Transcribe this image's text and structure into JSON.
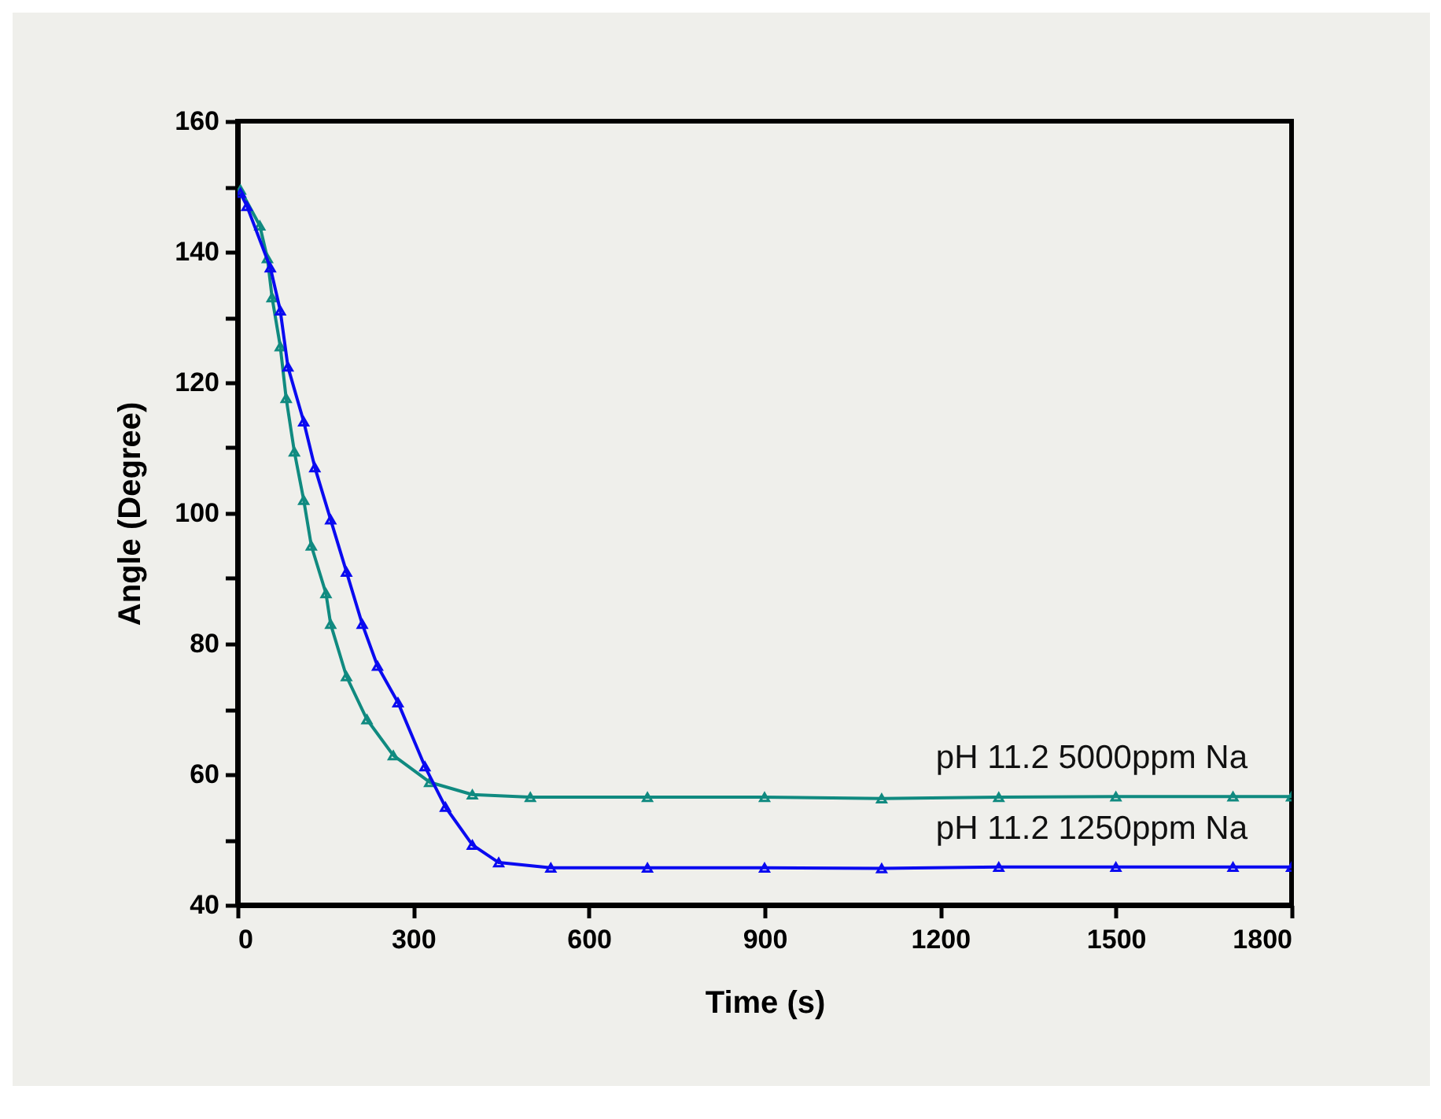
{
  "chart_data": {
    "type": "line",
    "xlabel": "Time (s)",
    "ylabel": "Angle (Degree)",
    "xlim": [
      0,
      1800
    ],
    "ylim": [
      40,
      160
    ],
    "xticks": [
      0,
      300,
      600,
      900,
      1200,
      1500,
      1800
    ],
    "yticks": [
      40,
      {
        "value": 50,
        "label": null
      },
      60,
      {
        "value": 70,
        "label": null
      },
      80,
      {
        "value": 90,
        "label": null
      },
      100,
      {
        "value": 110,
        "label": null
      },
      120,
      {
        "value": 130,
        "label": null
      },
      140,
      {
        "value": 150,
        "label": null
      },
      160
    ],
    "grid": false,
    "marker": "triangle",
    "series": [
      {
        "name": "pH 11.2 5000ppm Na",
        "color": "#108a80",
        "x": [
          5,
          38,
          51,
          59,
          73,
          83,
          97,
          113,
          126,
          151,
          159,
          186,
          221,
          266,
          328,
          401,
          500,
          700,
          900,
          1100,
          1300,
          1500,
          1700,
          1800
        ],
        "values": [
          149.5,
          144,
          139,
          133,
          125.5,
          117.6,
          109.4,
          102,
          95,
          87.7,
          83,
          75,
          68.4,
          62.9,
          58.8,
          56.9,
          56.5,
          56.5,
          56.5,
          56.3,
          56.5,
          56.6,
          56.6,
          56.6
        ]
      },
      {
        "name": "pH 11.2 1250ppm Na",
        "color": "#0a0af0",
        "x": [
          5,
          16,
          56,
          73,
          86,
          113,
          132,
          159,
          186,
          213,
          239,
          274,
          320,
          355,
          401,
          446,
          535,
          700,
          900,
          1100,
          1300,
          1500,
          1700,
          1800
        ],
        "values": [
          149,
          147,
          137.6,
          131,
          122.4,
          114,
          107,
          99,
          91,
          83,
          76.6,
          71,
          61.2,
          55,
          49.2,
          46.5,
          45.7,
          45.7,
          45.7,
          45.6,
          45.8,
          45.8,
          45.8,
          45.8
        ]
      }
    ]
  }
}
